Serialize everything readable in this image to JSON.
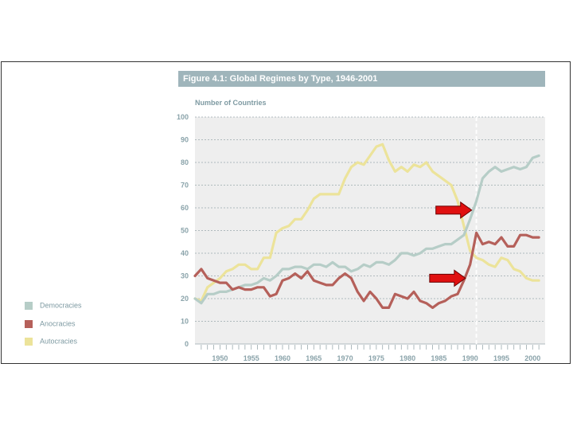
{
  "colors": {
    "democracies": "#b6cdc7",
    "anocracies": "#b5605a",
    "autocracies": "#ece39a",
    "plot_bg": "#eeeeee",
    "title_bar": "#9fb5bb",
    "arrow": "#e01010"
  },
  "chart_data": {
    "type": "line",
    "title": "Figure 4.1: Global Regimes by Type, 1946-2001",
    "ylabel": "Number of Countries",
    "xlabel": "",
    "xlim": [
      1946,
      2002
    ],
    "ylim": [
      0,
      100
    ],
    "yticks": [
      0,
      10,
      20,
      30,
      40,
      50,
      60,
      70,
      80,
      90,
      100
    ],
    "xtick_labels": [
      1950,
      1955,
      1960,
      1965,
      1970,
      1975,
      1980,
      1985,
      1990,
      1995,
      2000
    ],
    "reference_line_year": 1991,
    "x": [
      1946,
      1947,
      1948,
      1949,
      1950,
      1951,
      1952,
      1953,
      1954,
      1955,
      1956,
      1957,
      1958,
      1959,
      1960,
      1961,
      1962,
      1963,
      1964,
      1965,
      1966,
      1967,
      1968,
      1969,
      1970,
      1971,
      1972,
      1973,
      1974,
      1975,
      1976,
      1977,
      1978,
      1979,
      1980,
      1981,
      1982,
      1983,
      1984,
      1985,
      1986,
      1987,
      1988,
      1989,
      1990,
      1991,
      1992,
      1993,
      1994,
      1995,
      1996,
      1997,
      1998,
      1999,
      2000,
      2001
    ],
    "series": [
      {
        "name": "Democracies",
        "values": [
          20,
          18,
          22,
          22,
          23,
          23,
          24,
          25,
          26,
          26,
          27,
          29,
          28,
          30,
          33,
          33,
          34,
          34,
          33,
          35,
          35,
          34,
          36,
          34,
          34,
          32,
          33,
          35,
          34,
          36,
          36,
          35,
          37,
          40,
          40,
          39,
          40,
          42,
          42,
          43,
          44,
          44,
          46,
          48,
          55,
          63,
          73,
          76,
          78,
          76,
          77,
          78,
          77,
          78,
          82,
          83
        ]
      },
      {
        "name": "Anocracies",
        "values": [
          30,
          33,
          29,
          28,
          27,
          27,
          24,
          25,
          24,
          24,
          25,
          25,
          21,
          22,
          28,
          29,
          31,
          29,
          32,
          28,
          27,
          26,
          26,
          29,
          31,
          29,
          23,
          19,
          23,
          20,
          16,
          16,
          22,
          21,
          20,
          23,
          19,
          18,
          16,
          18,
          19,
          21,
          22,
          28,
          35,
          49,
          44,
          45,
          44,
          47,
          43,
          43,
          48,
          48,
          47,
          47
        ]
      },
      {
        "name": "Autocracies",
        "values": [
          20,
          19,
          25,
          27,
          29,
          32,
          33,
          35,
          35,
          33,
          33,
          38,
          38,
          49,
          51,
          52,
          55,
          55,
          59,
          64,
          66,
          66,
          66,
          66,
          73,
          78,
          80,
          79,
          83,
          87,
          88,
          81,
          76,
          78,
          76,
          79,
          78,
          80,
          76,
          74,
          72,
          70,
          63,
          52,
          41,
          38,
          37,
          35,
          34,
          38,
          37,
          33,
          32,
          29,
          28,
          28
        ]
      }
    ],
    "legend": [
      "Democracies",
      "Anocracies",
      "Autocracies"
    ],
    "legend_position": "left",
    "annotations": [
      {
        "type": "arrow",
        "points_to_year": 1990,
        "points_to_value": 59
      },
      {
        "type": "arrow",
        "points_to_year": 1989,
        "points_to_value": 29
      }
    ]
  }
}
